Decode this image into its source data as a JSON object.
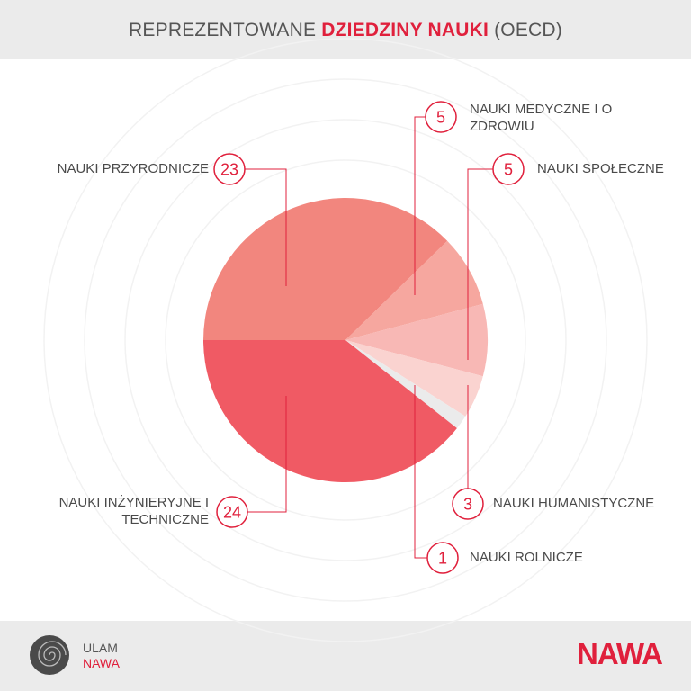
{
  "chart_data": {
    "type": "pie",
    "title_parts": [
      "REPREZENTOWANE",
      "DZIEDZINY NAUKI",
      "(OECD)"
    ],
    "categories": [
      "NAUKI PRZYRODNICZE",
      "NAUKI MEDYCZNE I O ZDROWIU",
      "NAUKI SPOŁECZNE",
      "NAUKI HUMANISTYCZNE",
      "NAUKI ROLNICZE",
      "NAUKI INŻYNIERYJNE I TECHNICZNE"
    ],
    "values": [
      23,
      5,
      5,
      3,
      1,
      24
    ],
    "colors": [
      "#f2867e",
      "#f6a79f",
      "#f8b8b5",
      "#fad3d0",
      "#ebebeb",
      "#f05a64"
    ]
  },
  "footer": {
    "program": "ULAM",
    "agency": "NAWA",
    "logo": "NAWA"
  }
}
